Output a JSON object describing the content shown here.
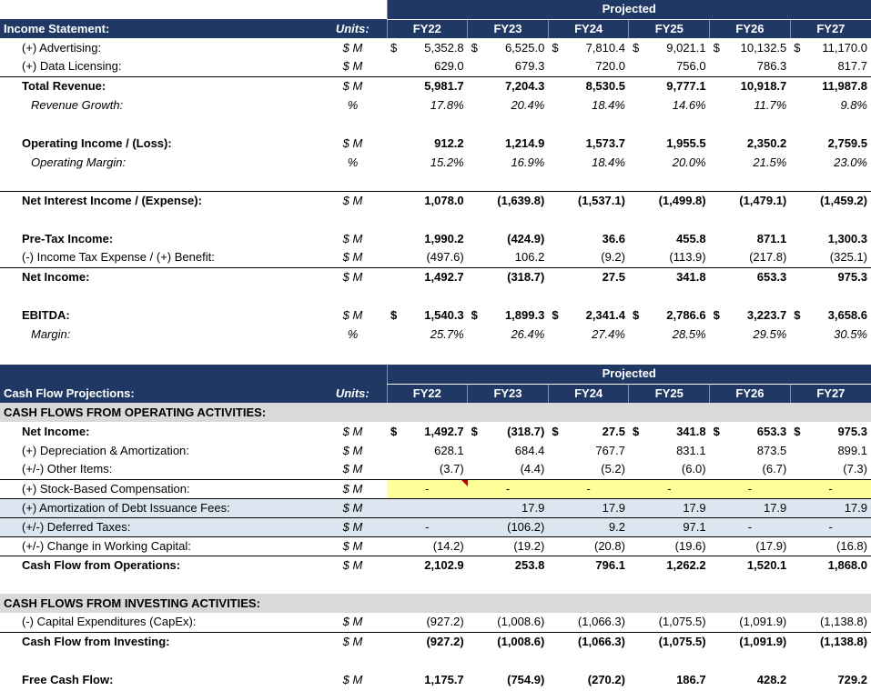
{
  "income": {
    "projected": "Projected",
    "title": "Income Statement:",
    "units_label": "Units:",
    "years": [
      "FY22",
      "FY23",
      "FY24",
      "FY25",
      "FY26",
      "FY27"
    ],
    "rows": {
      "advertising": {
        "label": "(+) Advertising:",
        "unit": "$ M",
        "values": [
          "5,352.8",
          "6,525.0",
          "7,810.4",
          "9,021.1",
          "10,132.5",
          "11,170.0"
        ]
      },
      "data_licensing": {
        "label": "(+) Data Licensing:",
        "unit": "$ M",
        "values": [
          "629.0",
          "679.3",
          "720.0",
          "756.0",
          "786.3",
          "817.7"
        ]
      },
      "total_revenue": {
        "label": "Total Revenue:",
        "unit": "$ M",
        "values": [
          "5,981.7",
          "7,204.3",
          "8,530.5",
          "9,777.1",
          "10,918.7",
          "11,987.8"
        ]
      },
      "revenue_growth": {
        "label": "Revenue Growth:",
        "unit": "%",
        "values": [
          "17.8%",
          "20.4%",
          "18.4%",
          "14.6%",
          "11.7%",
          "9.8%"
        ]
      },
      "operating_income": {
        "label": "Operating Income / (Loss):",
        "unit": "$ M",
        "values": [
          "912.2",
          "1,214.9",
          "1,573.7",
          "1,955.5",
          "2,350.2",
          "2,759.5"
        ]
      },
      "operating_margin": {
        "label": "Operating Margin:",
        "unit": "%",
        "values": [
          "15.2%",
          "16.9%",
          "18.4%",
          "20.0%",
          "21.5%",
          "23.0%"
        ]
      },
      "net_interest": {
        "label": "Net Interest Income / (Expense):",
        "unit": "$ M",
        "values": [
          "1,078.0",
          "(1,639.8)",
          "(1,537.1)",
          "(1,499.8)",
          "(1,479.1)",
          "(1,459.2)"
        ]
      },
      "pretax_income": {
        "label": "Pre-Tax Income:",
        "unit": "$ M",
        "values": [
          "1,990.2",
          "(424.9)",
          "36.6",
          "455.8",
          "871.1",
          "1,300.3"
        ]
      },
      "income_tax": {
        "label": "(-) Income Tax Expense / (+) Benefit:",
        "unit": "$ M",
        "values": [
          "(497.6)",
          "106.2",
          "(9.2)",
          "(113.9)",
          "(217.8)",
          "(325.1)"
        ]
      },
      "net_income": {
        "label": "Net Income:",
        "unit": "$ M",
        "values": [
          "1,492.7",
          "(318.7)",
          "27.5",
          "341.8",
          "653.3",
          "975.3"
        ]
      },
      "ebitda": {
        "label": "EBITDA:",
        "unit": "$ M",
        "values": [
          "1,540.3",
          "1,899.3",
          "2,341.4",
          "2,786.6",
          "3,223.7",
          "3,658.6"
        ]
      },
      "ebitda_margin": {
        "label": "Margin:",
        "unit": "%",
        "values": [
          "25.7%",
          "26.4%",
          "27.4%",
          "28.5%",
          "29.5%",
          "30.5%"
        ]
      }
    }
  },
  "cashflow": {
    "projected": "Projected",
    "title": "Cash Flow Projections:",
    "units_label": "Units:",
    "years": [
      "FY22",
      "FY23",
      "FY24",
      "FY25",
      "FY26",
      "FY27"
    ],
    "operating_header": "CASH FLOWS FROM OPERATING ACTIVITIES:",
    "investing_header": "CASH FLOWS FROM INVESTING ACTIVITIES:",
    "currency_symbol": "$",
    "rows": {
      "net_income": {
        "label": "Net Income:",
        "unit": "$ M",
        "values": [
          "1,492.7",
          "(318.7)",
          "27.5",
          "341.8",
          "653.3",
          "975.3"
        ]
      },
      "dep_amort": {
        "label": "(+) Depreciation & Amortization:",
        "unit": "$ M",
        "values": [
          "628.1",
          "684.4",
          "767.7",
          "831.1",
          "873.5",
          "899.1"
        ]
      },
      "other_items": {
        "label": "(+/-) Other Items:",
        "unit": "$ M",
        "values": [
          "(3.7)",
          "(4.4)",
          "(5.2)",
          "(6.0)",
          "(6.7)",
          "(7.3)"
        ]
      },
      "sbc": {
        "label": "(+) Stock-Based Compensation:",
        "unit": "$ M",
        "values": [
          "-",
          "-",
          "-",
          "-",
          "-",
          "-"
        ]
      },
      "amort_debt_fees": {
        "label": "(+) Amortization of Debt Issuance Fees:",
        "unit": "$ M",
        "values": [
          "",
          "17.9",
          "17.9",
          "17.9",
          "17.9",
          "17.9"
        ]
      },
      "deferred_taxes": {
        "label": "(+/-) Deferred Taxes:",
        "unit": "$ M",
        "values": [
          "-",
          "(106.2)",
          "9.2",
          "97.1",
          "-",
          "-"
        ]
      },
      "working_capital": {
        "label": "(+/-) Change in Working Capital:",
        "unit": "$ M",
        "values": [
          "(14.2)",
          "(19.2)",
          "(20.8)",
          "(19.6)",
          "(17.9)",
          "(16.8)"
        ]
      },
      "cfo": {
        "label": "Cash Flow from Operations:",
        "unit": "$ M",
        "values": [
          "2,102.9",
          "253.8",
          "796.1",
          "1,262.2",
          "1,520.1",
          "1,868.0"
        ]
      },
      "capex": {
        "label": "(-) Capital Expenditures (CapEx):",
        "unit": "$ M",
        "values": [
          "(927.2)",
          "(1,008.6)",
          "(1,066.3)",
          "(1,075.5)",
          "(1,091.9)",
          "(1,138.8)"
        ]
      },
      "cfi": {
        "label": "Cash Flow from Investing:",
        "unit": "$ M",
        "values": [
          "(927.2)",
          "(1,008.6)",
          "(1,066.3)",
          "(1,075.5)",
          "(1,091.9)",
          "(1,138.8)"
        ]
      },
      "fcf": {
        "label": "Free Cash Flow:",
        "unit": "$ M",
        "values": [
          "1,175.7",
          "(754.9)",
          "(270.2)",
          "186.7",
          "428.2",
          "729.2"
        ]
      }
    }
  },
  "colors": {
    "header_navy": "#1f3864",
    "section_gray": "#d9d9d9",
    "input_yellow": "#ffff99",
    "highlight_blue": "#dce6f1",
    "comment_red": "#c00000"
  }
}
